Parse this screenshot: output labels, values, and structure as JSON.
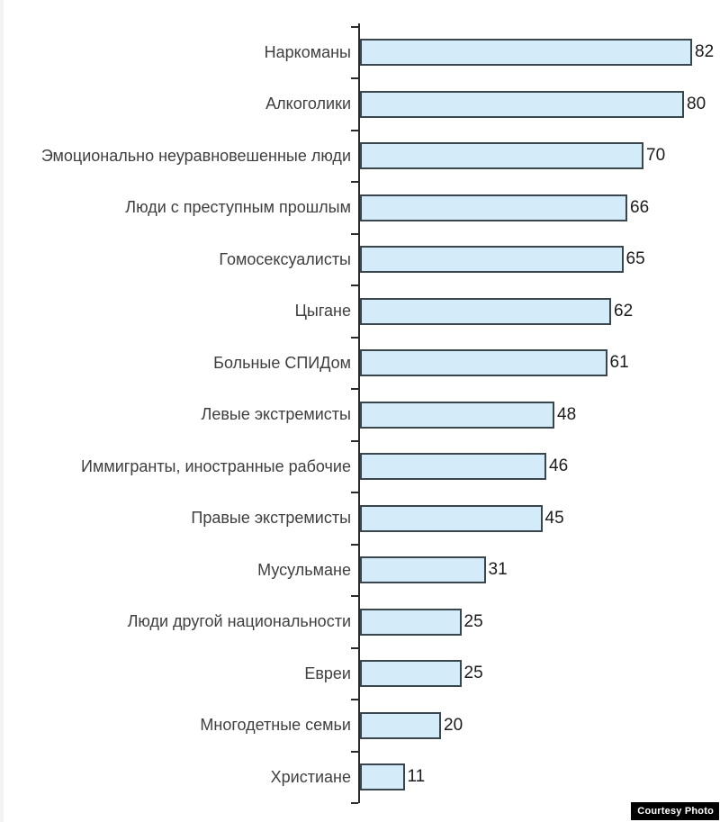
{
  "chart_data": {
    "type": "bar",
    "orientation": "horizontal",
    "title": "",
    "xlabel": "",
    "ylabel": "",
    "grid": false,
    "legend": false,
    "xlim": [
      0,
      90
    ],
    "value_labels_shown": true,
    "categories": [
      "Наркоманы",
      "Алкоголики",
      "Эмоционально неуравновешенные люди",
      "Люди с преступным прошлым",
      "Гомосексуалисты",
      "Цыгане",
      "Больные СПИДом",
      "Левые экстремисты",
      "Иммигранты, иностранные рабочие",
      "Правые экстремисты",
      "Мусульмане",
      "Люди другой национальности",
      "Евреи",
      "Многодетные семьи",
      "Христиане"
    ],
    "values": [
      82,
      80,
      70,
      66,
      65,
      62,
      61,
      48,
      46,
      45,
      31,
      25,
      25,
      20,
      11
    ],
    "colors": {
      "bar_fill": "#d4ebfa",
      "bar_border": "#3a464e",
      "axis": "#2a2a2a",
      "tick": "#2a2a2a",
      "category_label": "#3f3f3f",
      "value_label": "#1b1b1b",
      "background": "#ffffff"
    }
  },
  "watermark": {
    "label": "Courtesy Photo",
    "bg": "#000000",
    "fg": "#ffffff"
  }
}
